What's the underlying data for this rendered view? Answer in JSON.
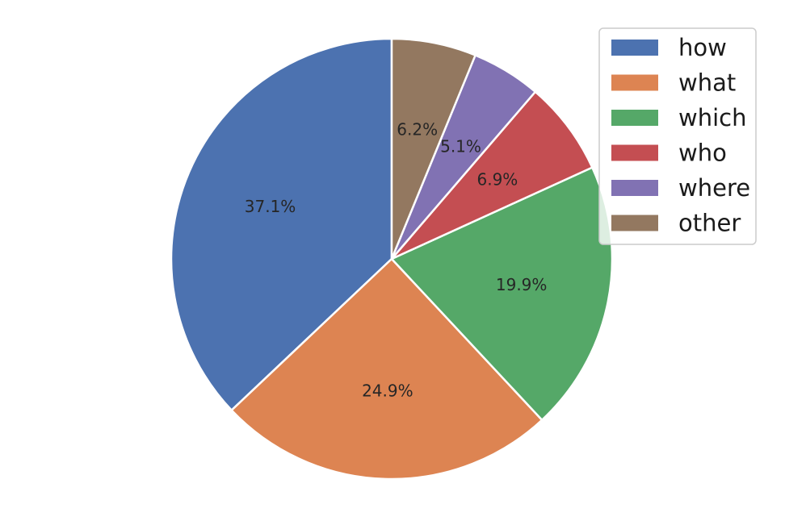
{
  "chart_data": {
    "type": "pie",
    "title": "",
    "categories": [
      "how",
      "what",
      "which",
      "who",
      "where",
      "other"
    ],
    "values": [
      37.1,
      24.9,
      19.9,
      6.9,
      5.1,
      6.2
    ],
    "labels": [
      "37.1%",
      "24.9%",
      "19.9%",
      "6.9%",
      "5.1%",
      "6.2%"
    ],
    "colors": [
      "#4c72b0",
      "#dd8452",
      "#55a868",
      "#c44e52",
      "#8172b3",
      "#937860"
    ],
    "start_angle_deg": 90,
    "direction": "counterclockwise",
    "legend_position": "top-right",
    "slice_edge_color": "#ffffff"
  }
}
